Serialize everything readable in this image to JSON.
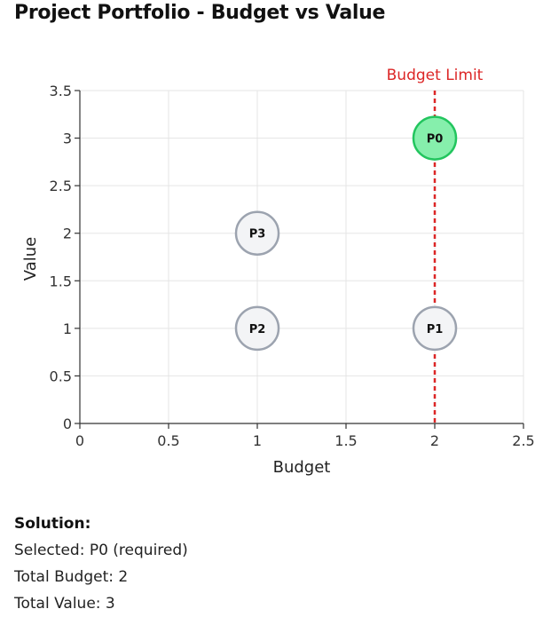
{
  "title": "Project Portfolio - Budget vs Value",
  "chart_data": {
    "type": "scatter",
    "title": "Project Portfolio - Budget vs Value",
    "xlabel": "Budget",
    "ylabel": "Value",
    "xlim": [
      0,
      2.5
    ],
    "ylim": [
      0,
      3.5
    ],
    "xticks": [
      0,
      0.5,
      1,
      1.5,
      2,
      2.5
    ],
    "yticks": [
      0,
      0.5,
      1,
      1.5,
      2,
      2.5,
      3,
      3.5
    ],
    "grid": true,
    "points": [
      {
        "label": "P0",
        "x": 2,
        "y": 3,
        "selected": true
      },
      {
        "label": "P1",
        "x": 2,
        "y": 1,
        "selected": false
      },
      {
        "label": "P2",
        "x": 1,
        "y": 1,
        "selected": false
      },
      {
        "label": "P3",
        "x": 1,
        "y": 2,
        "selected": false
      }
    ],
    "reference_line": {
      "label": "Budget Limit",
      "x": 2,
      "color": "#dc2626"
    },
    "colors": {
      "selected_fill": "#86efac",
      "selected_stroke": "#22c55e",
      "unselected_fill": "#f3f4f6",
      "unselected_stroke": "#9ca3af",
      "grid": "#e5e5e5",
      "axis": "#333333"
    }
  },
  "solution": {
    "heading": "Solution:",
    "selected": "Selected: P0 (required)",
    "total_budget": "Total Budget: 2",
    "total_value": "Total Value: 3"
  }
}
